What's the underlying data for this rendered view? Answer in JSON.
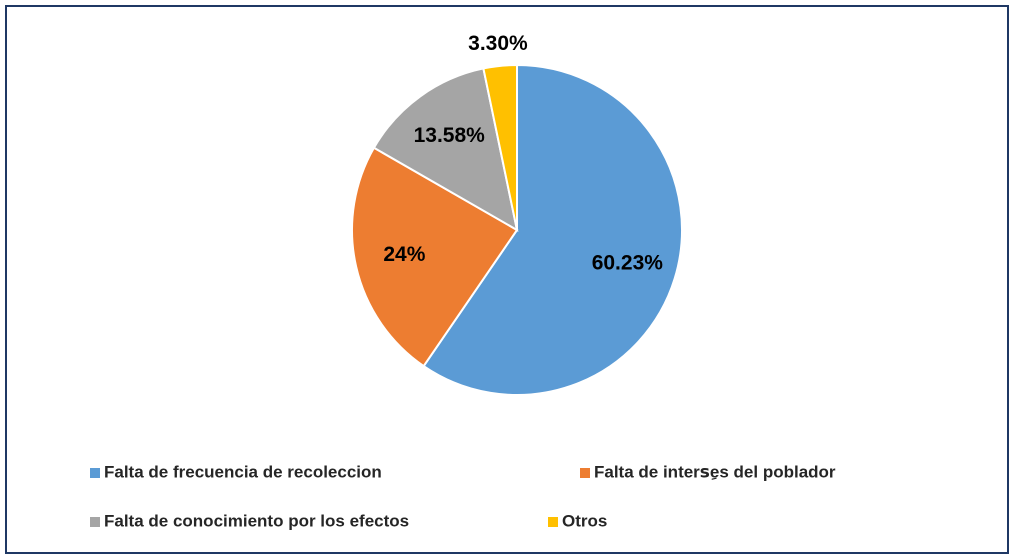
{
  "chart_data": {
    "type": "pie",
    "categories": [
      "Falta de frecuencia de recoleccion",
      "Falta de intersِes del poblador",
      "Falta de conocimiento por los efectos",
      "Otros"
    ],
    "values": [
      60.23,
      24,
      13.58,
      3.3
    ],
    "value_labels": [
      "60.23%",
      "24%",
      "13.58%",
      "3.30%"
    ],
    "colors": [
      "#5b9bd5",
      "#ed7d31",
      "#a5a5a5",
      "#ffc000"
    ],
    "legend": "bottom"
  }
}
